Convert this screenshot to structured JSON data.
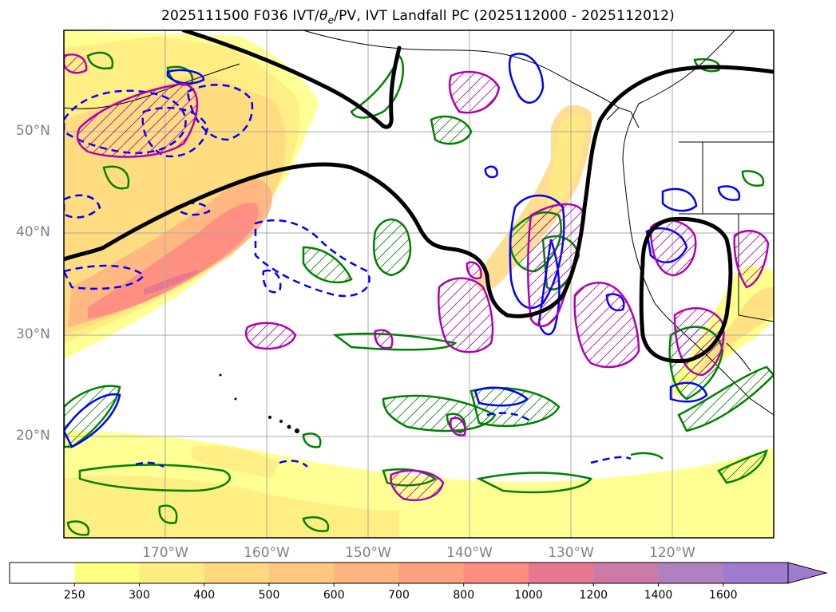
{
  "title": "2025111500 F036 IVT/θe/PV, IVT Landfall PC (2025112000 - 2025112012)",
  "title_parts": {
    "prefix": "2025111500 F036 IVT/",
    "theta": "θ",
    "sub": "e",
    "suffix": "/PV, IVT Landfall PC (2025112000 - 2025112012)"
  },
  "map": {
    "lat_labels": [
      "50°N",
      "40°N",
      "30°N",
      "20°N"
    ],
    "lon_labels": [
      "170°W",
      "160°W",
      "150°W",
      "140°W",
      "130°W",
      "120°W"
    ],
    "extent": {
      "lon_min": -180,
      "lon_max": -110,
      "lat_min": 10,
      "lat_max": 60
    },
    "gridlines": true,
    "colors": {
      "mean_contour": "#000000",
      "ivt_anomaly_solid": "#0000ff",
      "ivt_anomaly_dashed": "#0000ff",
      "theta_e": "#008000",
      "pv": "#b000b0",
      "coastline": "#000000"
    }
  },
  "colorbar": {
    "levels": [
      "250",
      "300",
      "400",
      "500",
      "600",
      "700",
      "800",
      "1000",
      "1200",
      "1400",
      "1600"
    ],
    "colors": [
      "#ffffff",
      "#ffff80",
      "#ffeb80",
      "#ffd880",
      "#ffc880",
      "#ffb480",
      "#ffa080",
      "#ff8c80",
      "#e87890",
      "#cc7aa8",
      "#b080c0",
      "#a07cd0"
    ],
    "extend": "max"
  }
}
